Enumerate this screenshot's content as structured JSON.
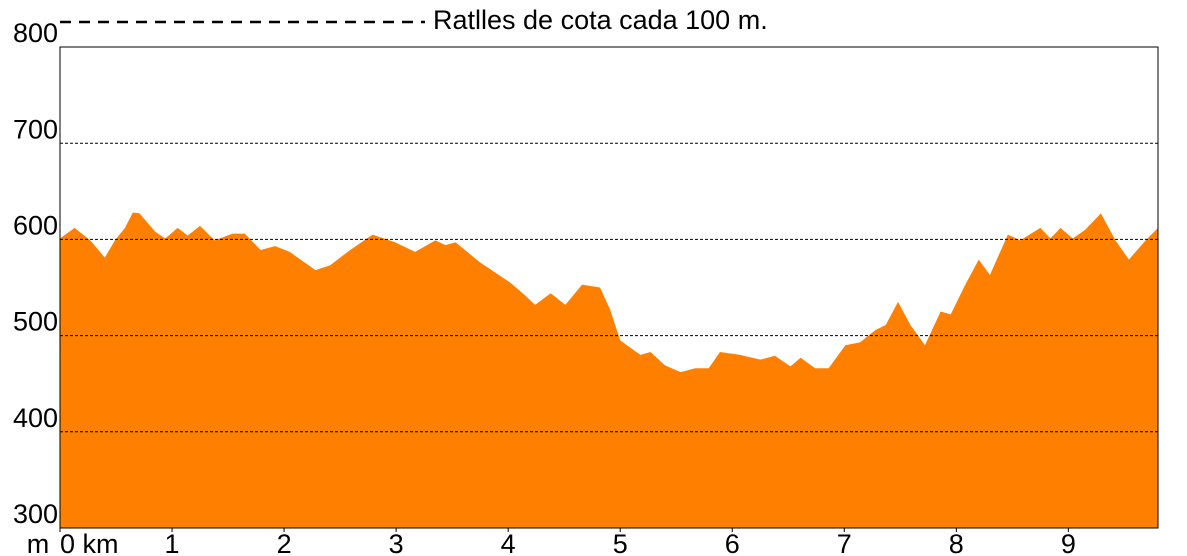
{
  "chart_data": {
    "type": "area",
    "title": "Ratlles de cota cada 100 m.",
    "y_unit": "m",
    "color": "#ff8000",
    "grid": true,
    "xlim": [
      0,
      9.8
    ],
    "ylim": [
      300,
      800
    ],
    "xticks": [
      {
        "value": 0,
        "label": "0 km"
      },
      1,
      2,
      3,
      4,
      5,
      6,
      7,
      8,
      9
    ],
    "yticks": [
      300,
      400,
      500,
      600,
      700,
      800
    ],
    "x": [
      0,
      0.13,
      0.27,
      0.4,
      0.49,
      0.58,
      0.65,
      0.71,
      0.85,
      0.94,
      1.05,
      1.14,
      1.25,
      1.38,
      1.54,
      1.65,
      1.79,
      1.92,
      2.05,
      2.28,
      2.41,
      2.59,
      2.79,
      2.99,
      3.17,
      3.35,
      3.44,
      3.53,
      3.75,
      4.02,
      4.15,
      4.24,
      4.38,
      4.51,
      4.66,
      4.82,
      4.91,
      5.0,
      5.18,
      5.27,
      5.4,
      5.54,
      5.67,
      5.79,
      5.89,
      6.07,
      6.25,
      6.38,
      6.52,
      6.61,
      6.74,
      6.86,
      7.01,
      7.14,
      7.28,
      7.37,
      7.48,
      7.59,
      7.72,
      7.86,
      7.95,
      8.08,
      8.2,
      8.3,
      8.46,
      8.57,
      8.75,
      8.84,
      8.93,
      9.04,
      9.15,
      9.29,
      9.42,
      9.54,
      9.69,
      9.8
    ],
    "values": [
      601,
      612,
      599,
      581,
      599,
      612,
      628,
      627,
      608,
      601,
      612,
      604,
      614,
      599,
      606,
      606,
      589,
      593,
      587,
      568,
      573,
      589,
      605,
      597,
      587,
      599,
      594,
      597,
      576,
      555,
      542,
      532,
      544,
      532,
      553,
      550,
      527,
      495,
      480,
      483,
      469,
      462,
      466,
      466,
      483,
      480,
      475,
      479,
      468,
      477,
      466,
      466,
      490,
      493,
      506,
      511,
      535,
      511,
      490,
      525,
      522,
      553,
      579,
      563,
      605,
      599,
      612,
      601,
      612,
      601,
      610,
      627,
      599,
      579,
      599,
      612
    ]
  }
}
